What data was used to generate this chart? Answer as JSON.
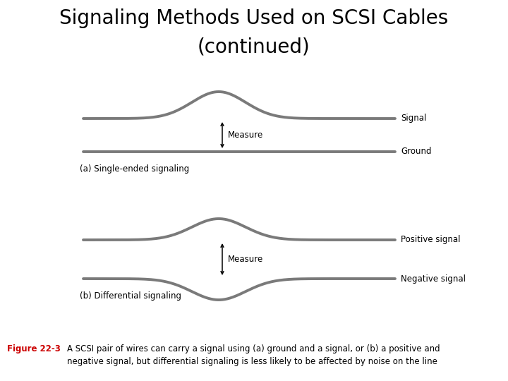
{
  "title_line1": "Signaling Methods Used on SCSI Cables",
  "title_line2": "(continued)",
  "line_color": "#7a7a7a",
  "line_width": 2.8,
  "arrow_color": "#000000",
  "text_color": "#000000",
  "red_color": "#cc0000",
  "bg_color": "#ffffff",
  "label_signal": "Signal",
  "label_ground": "Ground",
  "label_positive": "Positive signal",
  "label_negative": "Negative signal",
  "label_measure_a": "Measure",
  "label_measure_b": "Measure",
  "label_a": "(a) Single-ended signaling",
  "label_b": "(b) Differential signaling",
  "fig_label": "Figure 22-3",
  "fig_caption": "A SCSI pair of wires can carry a signal using (a) ground and a signal, or (b) a positive and\nnegative signal, but differential signaling is less likely to be affected by noise on the line",
  "title_fontsize": 20,
  "title2_fontsize": 20,
  "label_fontsize": 8.5,
  "caption_fontsize": 8.5,
  "fig_label_fontsize": 8.5,
  "sublabel_fontsize": 8.5
}
